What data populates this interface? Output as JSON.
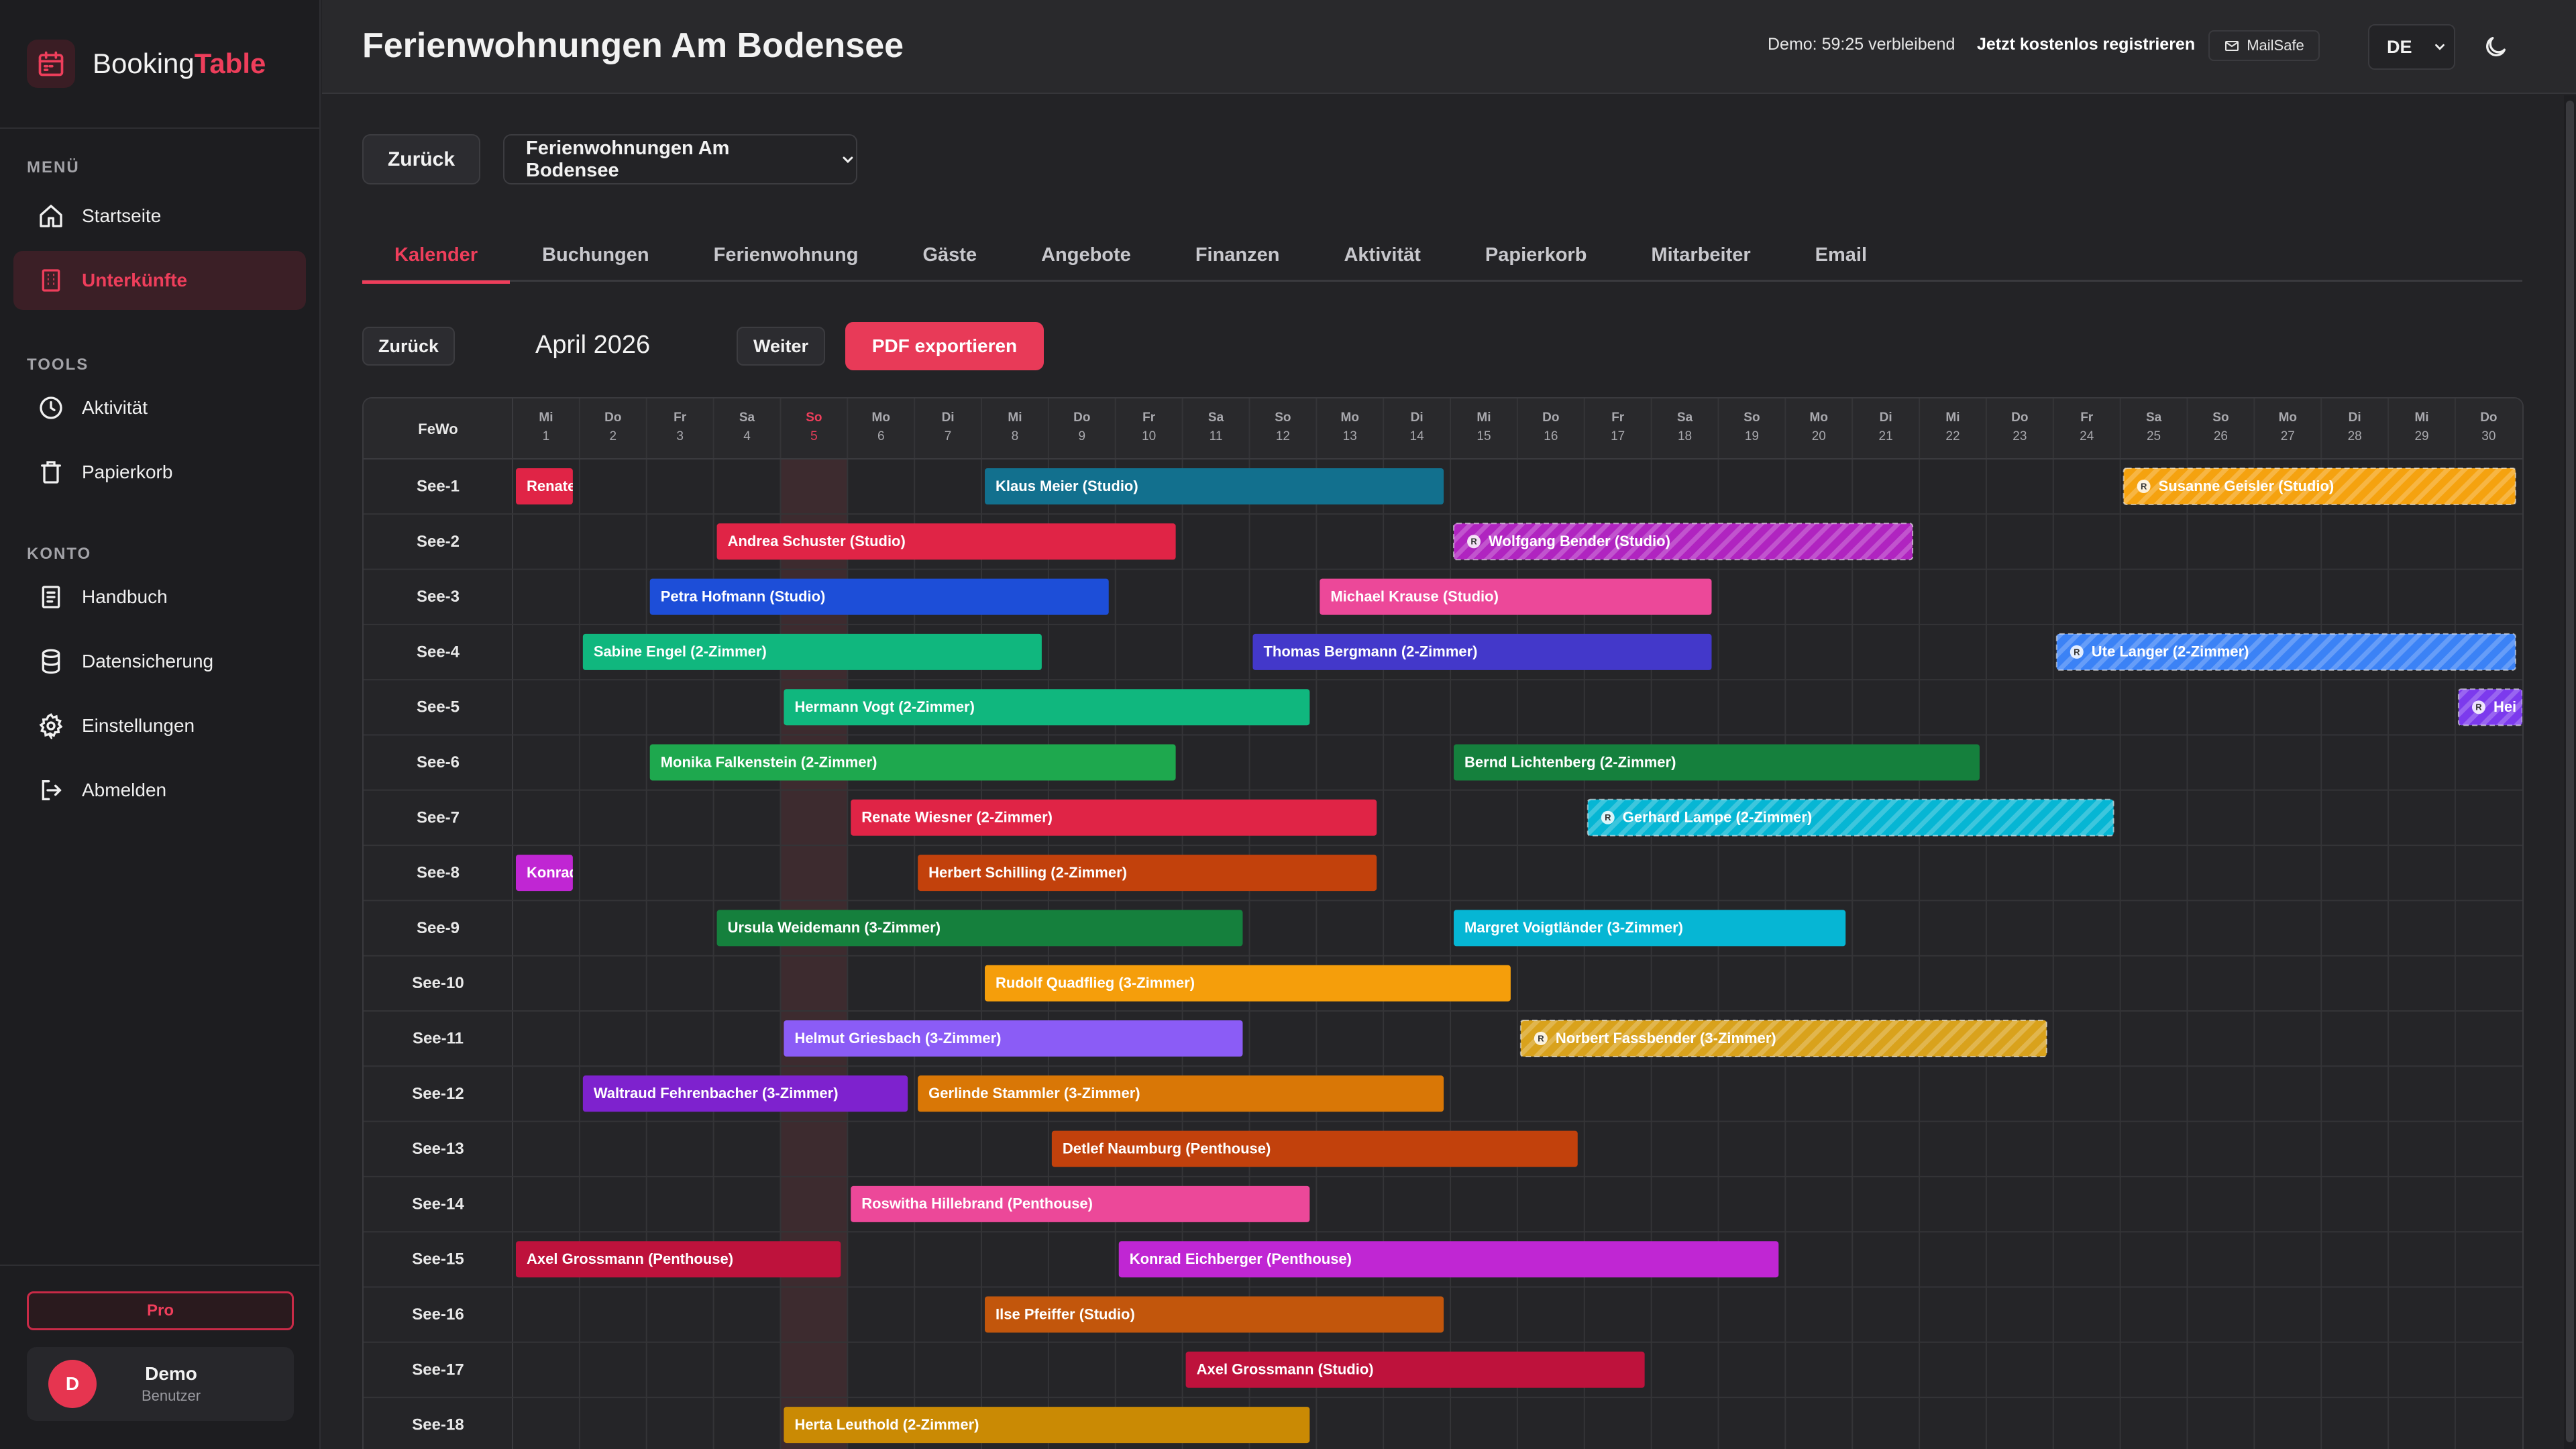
{
  "brand": {
    "name_part1": "Booking",
    "name_part2": "Table"
  },
  "sidebar": {
    "menu_heading": "MENÜ",
    "menu": [
      {
        "label": "Startseite",
        "icon": "home-icon"
      },
      {
        "label": "Unterkünfte",
        "icon": "building-icon",
        "active": true
      }
    ],
    "tools_heading": "TOOLS",
    "tools": [
      {
        "label": "Aktivität",
        "icon": "clock-icon"
      },
      {
        "label": "Papierkorb",
        "icon": "trash-icon"
      }
    ],
    "account_heading": "KONTO",
    "account": [
      {
        "label": "Handbuch",
        "icon": "book-icon"
      },
      {
        "label": "Datensicherung",
        "icon": "database-icon"
      },
      {
        "label": "Einstellungen",
        "icon": "gear-icon"
      },
      {
        "label": "Abmelden",
        "icon": "logout-icon"
      }
    ],
    "pro_label": "Pro",
    "user": {
      "initial": "D",
      "name": "Demo",
      "role": "Benutzer"
    }
  },
  "header": {
    "title": "Ferienwohnungen Am Bodensee",
    "demo_text": "Demo: 59:25 verbleibend",
    "register_link": "Jetzt kostenlos registrieren",
    "mailsafe_label": "MailSafe",
    "language": "DE"
  },
  "controls": {
    "back_label": "Zurück",
    "property_selected": "Ferienwohnungen Am Bodensee"
  },
  "tabs": [
    "Kalender",
    "Buchungen",
    "Ferienwohnung",
    "Gäste",
    "Angebote",
    "Finanzen",
    "Aktivität",
    "Papierkorb",
    "Mitarbeiter",
    "Email"
  ],
  "active_tab": "Kalender",
  "calendar": {
    "back_label": "Zurück",
    "month_label": "April 2026",
    "next_label": "Weiter",
    "pdf_label": "PDF exportieren",
    "column_header": "FeWo",
    "reserved_marker": "R",
    "today": 5,
    "days": [
      {
        "wd": "Mi",
        "d": "1"
      },
      {
        "wd": "Do",
        "d": "2"
      },
      {
        "wd": "Fr",
        "d": "3"
      },
      {
        "wd": "Sa",
        "d": "4"
      },
      {
        "wd": "So",
        "d": "5"
      },
      {
        "wd": "Mo",
        "d": "6"
      },
      {
        "wd": "Di",
        "d": "7"
      },
      {
        "wd": "Mi",
        "d": "8"
      },
      {
        "wd": "Do",
        "d": "9"
      },
      {
        "wd": "Fr",
        "d": "10"
      },
      {
        "wd": "Sa",
        "d": "11"
      },
      {
        "wd": "So",
        "d": "12"
      },
      {
        "wd": "Mo",
        "d": "13"
      },
      {
        "wd": "Di",
        "d": "14"
      },
      {
        "wd": "Mi",
        "d": "15"
      },
      {
        "wd": "Do",
        "d": "16"
      },
      {
        "wd": "Fr",
        "d": "17"
      },
      {
        "wd": "Sa",
        "d": "18"
      },
      {
        "wd": "So",
        "d": "19"
      },
      {
        "wd": "Mo",
        "d": "20"
      },
      {
        "wd": "Di",
        "d": "21"
      },
      {
        "wd": "Mi",
        "d": "22"
      },
      {
        "wd": "Do",
        "d": "23"
      },
      {
        "wd": "Fr",
        "d": "24"
      },
      {
        "wd": "Sa",
        "d": "25"
      },
      {
        "wd": "So",
        "d": "26"
      },
      {
        "wd": "Mo",
        "d": "27"
      },
      {
        "wd": "Di",
        "d": "28"
      },
      {
        "wd": "Mi",
        "d": "29"
      },
      {
        "wd": "Do",
        "d": "30"
      }
    ],
    "units": [
      "See-1",
      "See-2",
      "See-3",
      "See-4",
      "See-5",
      "See-6",
      "See-7",
      "See-8",
      "See-9",
      "See-10",
      "See-11",
      "See-12",
      "See-13",
      "See-14",
      "See-15",
      "See-16",
      "See-17",
      "See-18"
    ],
    "bookings": [
      {
        "row": 0,
        "start": 1,
        "end": 1.9,
        "label": "Renate",
        "color": "#e02446"
      },
      {
        "row": 0,
        "start": 8,
        "end": 14.9,
        "label": "Klaus Meier (Studio)",
        "color": "#12708e"
      },
      {
        "row": 0,
        "start": 25,
        "end": 30.9,
        "label": "Susanne Geisler (Studio)",
        "color": "#f5a20f",
        "reserved": true
      },
      {
        "row": 1,
        "start": 4,
        "end": 10.9,
        "label": "Andrea Schuster (Studio)",
        "color": "#e02446"
      },
      {
        "row": 1,
        "start": 15,
        "end": 21.9,
        "label": "Wolfgang Bender (Studio)",
        "color": "#b024c0",
        "reserved": true
      },
      {
        "row": 2,
        "start": 3,
        "end": 9.9,
        "label": "Petra Hofmann (Studio)",
        "color": "#1d4ed8"
      },
      {
        "row": 2,
        "start": 13,
        "end": 18.9,
        "label": "Michael Krause (Studio)",
        "color": "#ec4899"
      },
      {
        "row": 3,
        "start": 2,
        "end": 8.9,
        "label": "Sabine Engel (2-Zimmer)",
        "color": "#10b77e"
      },
      {
        "row": 3,
        "start": 12,
        "end": 18.9,
        "label": "Thomas Bergmann (2-Zimmer)",
        "color": "#4338ca"
      },
      {
        "row": 3,
        "start": 24,
        "end": 30.9,
        "label": "Ute Langer (2-Zimmer)",
        "color": "#3b82f6",
        "reserved": true
      },
      {
        "row": 4,
        "start": 5,
        "end": 12.9,
        "label": "Hermann Vogt (2-Zimmer)",
        "color": "#10b77e"
      },
      {
        "row": 4,
        "start": 30,
        "end": 31,
        "label": "Hei",
        "color": "#7c3aed",
        "reserved": true
      },
      {
        "row": 5,
        "start": 3,
        "end": 10.9,
        "label": "Monika Falkenstein (2-Zimmer)",
        "color": "#1ea84e"
      },
      {
        "row": 5,
        "start": 15,
        "end": 22.9,
        "label": "Bernd Lichtenberg (2-Zimmer)",
        "color": "#15803d"
      },
      {
        "row": 6,
        "start": 6,
        "end": 13.9,
        "label": "Renate Wiesner (2-Zimmer)",
        "color": "#e02446"
      },
      {
        "row": 6,
        "start": 17,
        "end": 24.9,
        "label": "Gerhard Lampe (2-Zimmer)",
        "color": "#06b6d4",
        "reserved": true
      },
      {
        "row": 7,
        "start": 1,
        "end": 1.9,
        "label": "Konrad",
        "color": "#c026d3"
      },
      {
        "row": 7,
        "start": 7,
        "end": 13.9,
        "label": "Herbert Schilling (2-Zimmer)",
        "color": "#c2410c"
      },
      {
        "row": 8,
        "start": 4,
        "end": 11.9,
        "label": "Ursula Weidemann (3-Zimmer)",
        "color": "#15803d"
      },
      {
        "row": 8,
        "start": 15,
        "end": 20.9,
        "label": "Margret Voigtländer (3-Zimmer)",
        "color": "#06b6d4"
      },
      {
        "row": 9,
        "start": 8,
        "end": 15.9,
        "label": "Rudolf Quadflieg (3-Zimmer)",
        "color": "#f59e0b"
      },
      {
        "row": 10,
        "start": 5,
        "end": 11.9,
        "label": "Helmut Griesbach (3-Zimmer)",
        "color": "#8b5cf6"
      },
      {
        "row": 10,
        "start": 16,
        "end": 23.9,
        "label": "Norbert Fassbender (3-Zimmer)",
        "color": "#d9a21c",
        "reserved": true
      },
      {
        "row": 11,
        "start": 2,
        "end": 6.9,
        "label": "Waltraud Fehrenbacher (3-Zimmer)",
        "color": "#7e22ce"
      },
      {
        "row": 11,
        "start": 7,
        "end": 14.9,
        "label": "Gerlinde Stammler (3-Zimmer)",
        "color": "#d97706"
      },
      {
        "row": 12,
        "start": 9,
        "end": 16.9,
        "label": "Detlef Naumburg (Penthouse)",
        "color": "#c2410c"
      },
      {
        "row": 13,
        "start": 6,
        "end": 12.9,
        "label": "Roswitha Hillebrand (Penthouse)",
        "color": "#ec4899"
      },
      {
        "row": 14,
        "start": 1,
        "end": 5.9,
        "label": "Axel Grossmann (Penthouse)",
        "color": "#be123c"
      },
      {
        "row": 14,
        "start": 10,
        "end": 19.9,
        "label": "Konrad Eichberger (Penthouse)",
        "color": "#c026d3"
      },
      {
        "row": 15,
        "start": 8,
        "end": 14.9,
        "label": "Ilse Pfeiffer (Studio)",
        "color": "#c2560c"
      },
      {
        "row": 16,
        "start": 11,
        "end": 17.9,
        "label": "Axel Grossmann (Studio)",
        "color": "#be123c"
      },
      {
        "row": 17,
        "start": 5,
        "end": 12.9,
        "label": "Herta Leuthold (2-Zimmer)",
        "color": "#ca8a04"
      }
    ]
  }
}
